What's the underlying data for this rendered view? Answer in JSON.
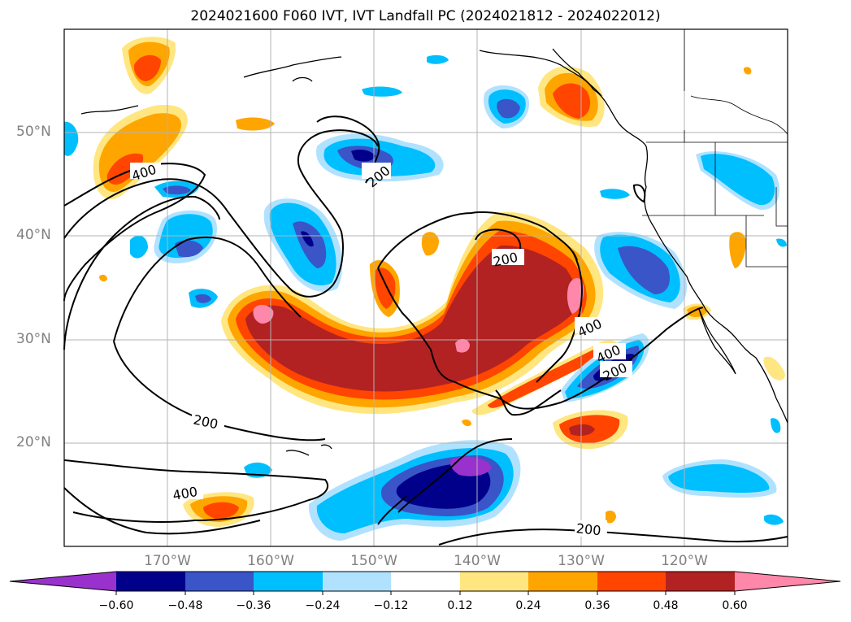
{
  "title": "2024021600 F060 IVT, IVT Landfall PC (2024021812 - 2024022012)",
  "lat_labels": [
    "50°N",
    "40°N",
    "30°N",
    "20°N"
  ],
  "lon_labels": [
    "170°W",
    "160°W",
    "150°W",
    "140°W",
    "130°W",
    "120°W"
  ],
  "contour_labels": [
    "400",
    "200",
    "200",
    "400",
    "400",
    "200",
    "200",
    "400",
    "200"
  ],
  "colorbar": {
    "ticks": [
      "−0.60",
      "−0.48",
      "−0.36",
      "−0.24",
      "−0.12",
      "0.12",
      "0.24",
      "0.36",
      "0.48",
      "0.60"
    ],
    "colors": [
      "#9932cc",
      "#00008b",
      "#3a55c8",
      "#00bfff",
      "#b0e2ff",
      "#ffffff",
      "#ffe680",
      "#ffa500",
      "#ff4500",
      "#b22222",
      "#ff88aa"
    ]
  },
  "map_extent": {
    "lon_min": -180,
    "lon_max": -110,
    "lat_min": 10,
    "lat_max": 60
  },
  "ivt_contour_levels": [
    200,
    400
  ],
  "fill_colors": {
    "pink": "#ff88aa",
    "darkred": "#b22222",
    "orangered": "#ff4500",
    "orange": "#ffa500",
    "yellow": "#ffe680",
    "lightblue": "#b0e2ff",
    "cyan": "#00bfff",
    "royal": "#3a55c8",
    "navy": "#00008b",
    "purple": "#9932cc"
  }
}
